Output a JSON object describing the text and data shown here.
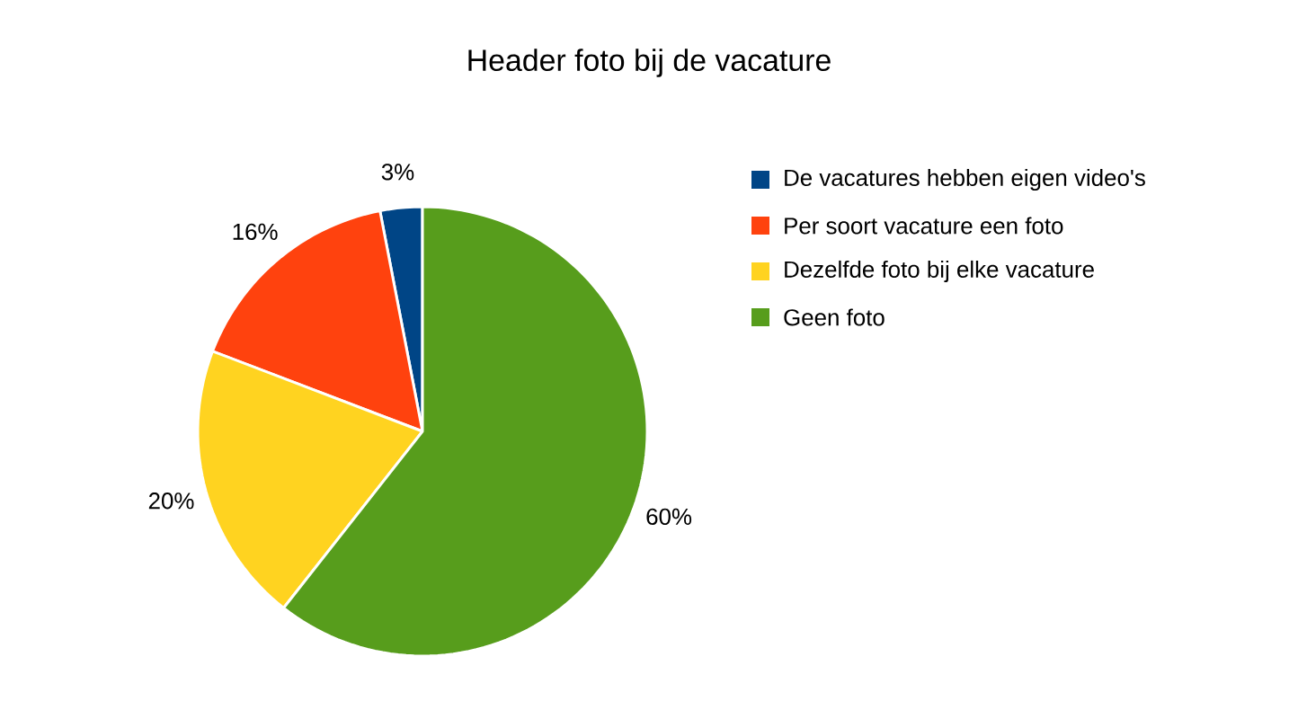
{
  "chart_data": {
    "type": "pie",
    "title": "Header foto bij de vacature",
    "categories": [
      "De vacatures hebben eigen video's",
      "Per soort vacature een foto",
      "Dezelfde foto bij elke vacature",
      "Geen foto"
    ],
    "values": [
      3,
      16,
      20,
      60
    ],
    "colors": [
      "#004586",
      "#ff420e",
      "#ffd320",
      "#579d1c"
    ],
    "value_labels": [
      "3%",
      "16%",
      "20%",
      "60%"
    ],
    "legend": "right"
  }
}
